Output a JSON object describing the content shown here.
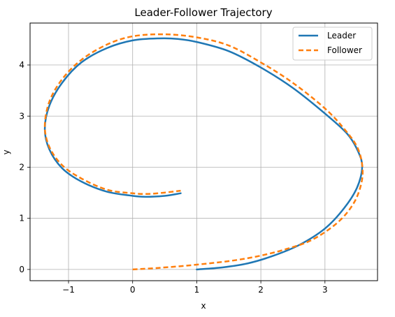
{
  "chart_data": {
    "type": "line",
    "title": "Leader-Follower Trajectory",
    "xlabel": "x",
    "ylabel": "y",
    "xlim": [
      -1.6,
      3.82
    ],
    "ylim": [
      -0.22,
      4.82
    ],
    "xticks": [
      -1,
      0,
      1,
      2,
      3
    ],
    "yticks": [
      0,
      1,
      2,
      3,
      4
    ],
    "xtick_labels": [
      "−1",
      "0",
      "1",
      "2",
      "3"
    ],
    "ytick_labels": [
      "0",
      "1",
      "2",
      "3",
      "4"
    ],
    "grid": true,
    "legend_position": "upper-right",
    "series": [
      {
        "name": "Leader",
        "color": "#1f77b4",
        "style": "solid",
        "points": [
          [
            1.0,
            0.0
          ],
          [
            1.4,
            0.04
          ],
          [
            1.8,
            0.12
          ],
          [
            2.2,
            0.27
          ],
          [
            2.6,
            0.48
          ],
          [
            3.0,
            0.8
          ],
          [
            3.3,
            1.2
          ],
          [
            3.5,
            1.6
          ],
          [
            3.58,
            2.0
          ],
          [
            3.52,
            2.3
          ],
          [
            3.35,
            2.65
          ],
          [
            3.0,
            3.05
          ],
          [
            2.5,
            3.55
          ],
          [
            2.0,
            3.95
          ],
          [
            1.5,
            4.27
          ],
          [
            1.0,
            4.45
          ],
          [
            0.7,
            4.51
          ],
          [
            0.4,
            4.52
          ],
          [
            0.0,
            4.48
          ],
          [
            -0.4,
            4.33
          ],
          [
            -0.8,
            4.05
          ],
          [
            -1.1,
            3.65
          ],
          [
            -1.3,
            3.2
          ],
          [
            -1.37,
            2.75
          ],
          [
            -1.3,
            2.35
          ],
          [
            -1.1,
            1.98
          ],
          [
            -0.8,
            1.72
          ],
          [
            -0.4,
            1.52
          ],
          [
            0.0,
            1.44
          ],
          [
            0.2,
            1.42
          ],
          [
            0.5,
            1.44
          ],
          [
            0.75,
            1.49
          ]
        ]
      },
      {
        "name": "Follower",
        "color": "#ff7f0e",
        "style": "dashed",
        "points": [
          [
            0.0,
            0.0
          ],
          [
            0.4,
            0.03
          ],
          [
            0.8,
            0.07
          ],
          [
            1.2,
            0.12
          ],
          [
            1.6,
            0.18
          ],
          [
            2.0,
            0.27
          ],
          [
            2.4,
            0.4
          ],
          [
            2.8,
            0.58
          ],
          [
            3.2,
            0.92
          ],
          [
            3.45,
            1.3
          ],
          [
            3.57,
            1.7
          ],
          [
            3.58,
            2.05
          ],
          [
            3.5,
            2.4
          ],
          [
            3.3,
            2.75
          ],
          [
            3.0,
            3.15
          ],
          [
            2.5,
            3.65
          ],
          [
            2.0,
            4.05
          ],
          [
            1.5,
            4.38
          ],
          [
            1.0,
            4.54
          ],
          [
            0.5,
            4.6
          ],
          [
            0.0,
            4.56
          ],
          [
            -0.4,
            4.4
          ],
          [
            -0.8,
            4.1
          ],
          [
            -1.1,
            3.72
          ],
          [
            -1.3,
            3.28
          ],
          [
            -1.37,
            2.8
          ],
          [
            -1.3,
            2.4
          ],
          [
            -1.1,
            2.04
          ],
          [
            -0.8,
            1.78
          ],
          [
            -0.4,
            1.56
          ],
          [
            0.0,
            1.49
          ],
          [
            0.3,
            1.48
          ],
          [
            0.75,
            1.54
          ]
        ]
      }
    ]
  }
}
